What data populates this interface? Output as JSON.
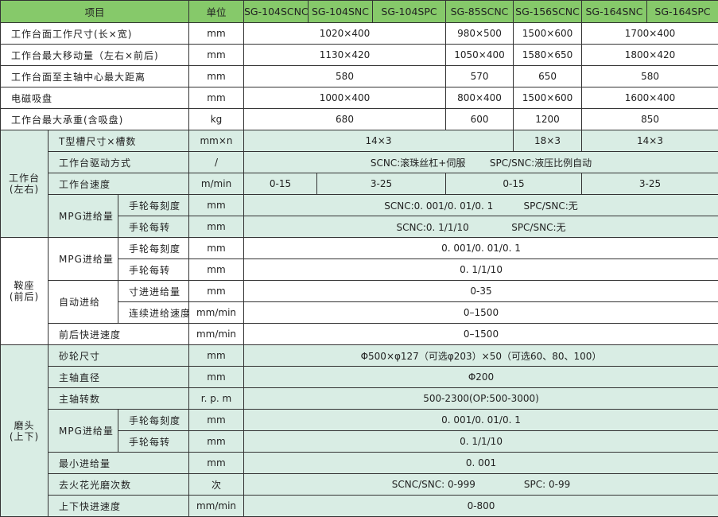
{
  "header": {
    "item": "项目",
    "unit": "单位",
    "models": [
      "SG-104SCNC",
      "SG-104SNC",
      "SG-104SPC",
      "SG-85SCNC",
      "SG-156SCNC",
      "SG-164SNC",
      "SG-164SPC"
    ]
  },
  "general_rows": [
    {
      "label": "工作台面工作尺寸(长×宽)",
      "unit": "mm",
      "values": [
        "1020×400",
        "980×500",
        "1500×600",
        "1700×400"
      ]
    },
    {
      "label": "工作台最大移动量（左右×前后)",
      "unit": "mm",
      "values": [
        "1130×420",
        "1050×400",
        "1580×650",
        "1800×420"
      ]
    },
    {
      "label": "工作台面至主轴中心最大距离",
      "unit": "mm",
      "values": [
        "580",
        "570",
        "650",
        "580"
      ]
    },
    {
      "label": "电磁吸盘",
      "unit": "mm",
      "values": [
        "1000×400",
        "800×400",
        "1500×600",
        "1600×400"
      ]
    },
    {
      "label": "工作台最大承重(含吸盘)",
      "unit": "kg",
      "values": [
        "680",
        "600",
        "1200",
        "850"
      ]
    }
  ],
  "sections": [
    {
      "title": "工作台\n(左右)",
      "rows": [
        {
          "label": "T型槽尺寸×槽数",
          "unit": "mm×n",
          "values": [
            "14×3",
            "18×3",
            "14×3"
          ]
        },
        {
          "label": "工作台驱动方式",
          "unit": "/",
          "values": [
            "SCNC:滚珠丝杠+伺服        SPC/SNC:液压比例自动"
          ]
        },
        {
          "label": "工作台速度",
          "unit": "m/min",
          "values": [
            "0-15",
            "3-25",
            "0-15",
            "3-25"
          ]
        },
        {
          "group": "MPG进给量",
          "label": "手轮每刻度",
          "unit": "mm",
          "values": [
            "SCNC:0. 001/0. 01/0. 1          SPC/SNC:无"
          ]
        },
        {
          "group": "MPG进给量",
          "label": "手轮每转",
          "unit": "mm",
          "values": [
            "SCNC:0. 1/1/10              SPC/SNC:无"
          ]
        }
      ]
    },
    {
      "title": "鞍座\n(前后)",
      "rows": [
        {
          "group": "MPG进给量",
          "label": "手轮每刻度",
          "unit": "mm",
          "values": [
            "0. 001/0. 01/0. 1"
          ]
        },
        {
          "group": "MPG进给量",
          "label": "手轮每转",
          "unit": "mm",
          "values": [
            "0. 1/1/10"
          ]
        },
        {
          "group": "自动进给",
          "label": "寸进进给量",
          "unit": "mm",
          "values": [
            "0-35"
          ]
        },
        {
          "group": "自动进给",
          "label": "连续进给速度",
          "unit": "mm/min",
          "values": [
            "0–1500"
          ]
        },
        {
          "label": "前后快进速度",
          "unit": "mm/min",
          "values": [
            "0–1500"
          ]
        }
      ]
    },
    {
      "title": "磨头\n(上下)",
      "rows": [
        {
          "label": "砂轮尺寸",
          "unit": "mm",
          "values": [
            "Φ500×φ127（可选φ203）×50（可选60、80、100）"
          ]
        },
        {
          "label": "主轴直径",
          "unit": "mm",
          "values": [
            "Φ200"
          ]
        },
        {
          "label": "主轴转数",
          "unit": "r. p. m",
          "values": [
            "500-2300(OP:500-3000)"
          ]
        },
        {
          "group": "MPG进给量",
          "label": "手轮每刻度",
          "unit": "mm",
          "values": [
            "0. 001/0. 01/0. 1"
          ]
        },
        {
          "group": "MPG进给量",
          "label": "手轮每转",
          "unit": "mm",
          "values": [
            "0. 1/1/10"
          ]
        },
        {
          "label": "最小进给量",
          "unit": "mm",
          "values": [
            "0. 001"
          ]
        },
        {
          "label": "去火花光磨次数",
          "unit": "次",
          "values": [
            "SCNC/SNC: 0-999                SPC: 0-99"
          ]
        },
        {
          "label": "上下快进速度",
          "unit": "mm/min",
          "values": [
            "0-800"
          ]
        }
      ]
    }
  ],
  "colors": {
    "header": "#86c96a",
    "section_shade": "#d9ede4",
    "border": "#333333"
  }
}
